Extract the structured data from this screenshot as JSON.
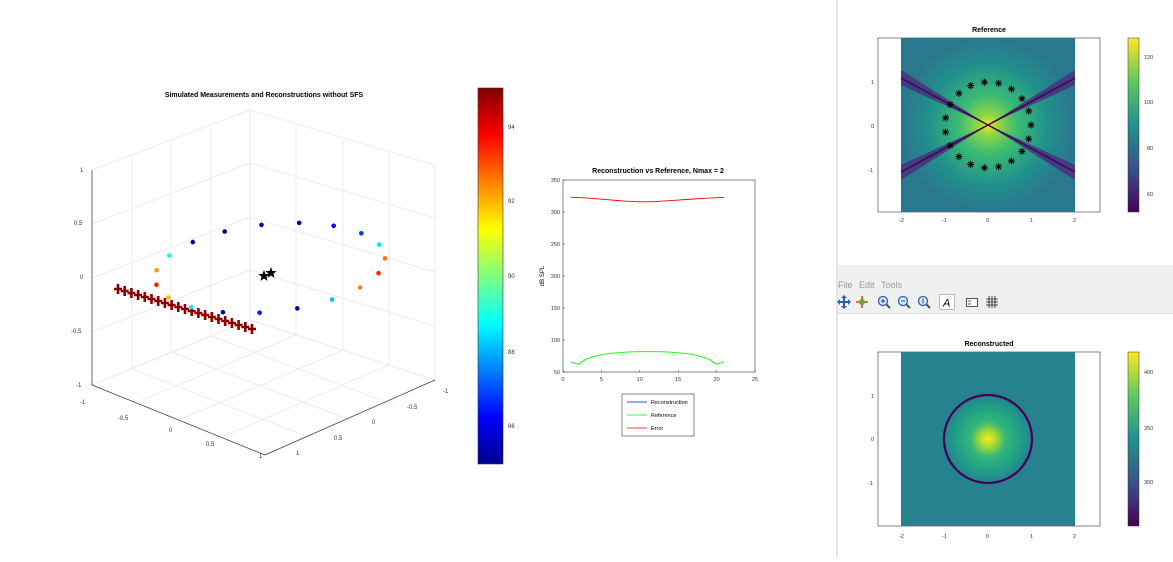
{
  "menu": {
    "file": "File",
    "edit": "Edit",
    "tools": "Tools"
  },
  "toolbar": {
    "icons": [
      "pan-icon",
      "rotate-icon",
      "zoom-in-icon",
      "zoom-out-icon",
      "zoom-reset-icon",
      "text-icon",
      "legend-icon",
      "grid-icon"
    ]
  },
  "chart_data": [
    {
      "type": "scatter",
      "title": "Simulated Measurements and Reconstructions without SFS",
      "zticks": [
        "1",
        "0.5",
        "0",
        "-0.5",
        "-1"
      ],
      "yticks": [
        "-1",
        "-0.5",
        "0",
        "0.5",
        "1"
      ],
      "xticks": [
        "1",
        "0.5",
        "0",
        "-0.5",
        "-1"
      ],
      "colorbar": {
        "colormap": "jet",
        "ticks": [
          "94",
          "92",
          "90",
          "88",
          "86"
        ],
        "range": [
          85,
          95.2
        ]
      },
      "points_color_values": [
        93.6,
        92.4,
        88.8,
        85.3,
        85.1,
        85.6,
        85.4,
        86.2,
        86.8,
        88.6,
        92.8,
        93.6,
        92.6,
        88.2,
        85.4,
        86.5,
        85.7,
        88.6,
        92.1
      ],
      "markers": {
        "receivers": "plus",
        "sources": "star"
      }
    },
    {
      "type": "line",
      "title": "Reconstruction vs Reference, Nmax = 2",
      "ylabel": "dB SPL",
      "xlim": [
        0,
        25
      ],
      "ylim": [
        50,
        350
      ],
      "xticks": [
        0,
        5,
        10,
        15,
        20,
        25
      ],
      "yticks": [
        50,
        100,
        150,
        200,
        250,
        300,
        350
      ],
      "legend_placement": "bottom-outside",
      "series": [
        {
          "name": "Reconstruction",
          "color": "#0000ff",
          "x": [],
          "y": []
        },
        {
          "name": "Reference",
          "color": "#00ff00",
          "x": [
            1,
            2,
            3,
            4,
            5,
            6,
            7,
            8,
            9,
            10,
            11,
            12,
            13,
            14,
            15,
            16,
            17,
            18,
            19,
            20,
            21
          ],
          "y": [
            66,
            62,
            70,
            74,
            77,
            79,
            80,
            81,
            81.5,
            81.7,
            81.8,
            81.7,
            81.5,
            81,
            80,
            79,
            77,
            74,
            70,
            62,
            66
          ]
        },
        {
          "name": "Error",
          "color": "#ff0000",
          "x": [
            1,
            2,
            3,
            4,
            5,
            6,
            7,
            8,
            9,
            10,
            11,
            12,
            13,
            14,
            15,
            16,
            17,
            18,
            19,
            20,
            21
          ],
          "y": [
            323,
            322.5,
            322,
            321,
            320,
            319,
            318,
            317,
            316.5,
            316,
            316,
            316.3,
            317,
            317.8,
            318.6,
            319.5,
            320.3,
            321,
            321.7,
            322.3,
            323
          ]
        }
      ]
    },
    {
      "type": "heatmap",
      "title": "Reference",
      "xticks": [
        "-2",
        "-1",
        "0",
        "1",
        "2"
      ],
      "yticks": [
        "1",
        "0",
        "-1"
      ],
      "colorbar": {
        "colormap": "viridis",
        "ticks": [
          "120",
          "100",
          "80",
          "60"
        ],
        "range": [
          52,
          128
        ]
      },
      "markers": "star ring"
    },
    {
      "type": "heatmap",
      "title": "Reconstructed",
      "xticks": [
        "-2",
        "-1",
        "0",
        "1",
        "2"
      ],
      "yticks": [
        "1",
        "0",
        "-1"
      ],
      "colorbar": {
        "colormap": "viridis",
        "ticks": [
          "400",
          "350",
          "300"
        ],
        "range": [
          265,
          415
        ]
      }
    }
  ]
}
